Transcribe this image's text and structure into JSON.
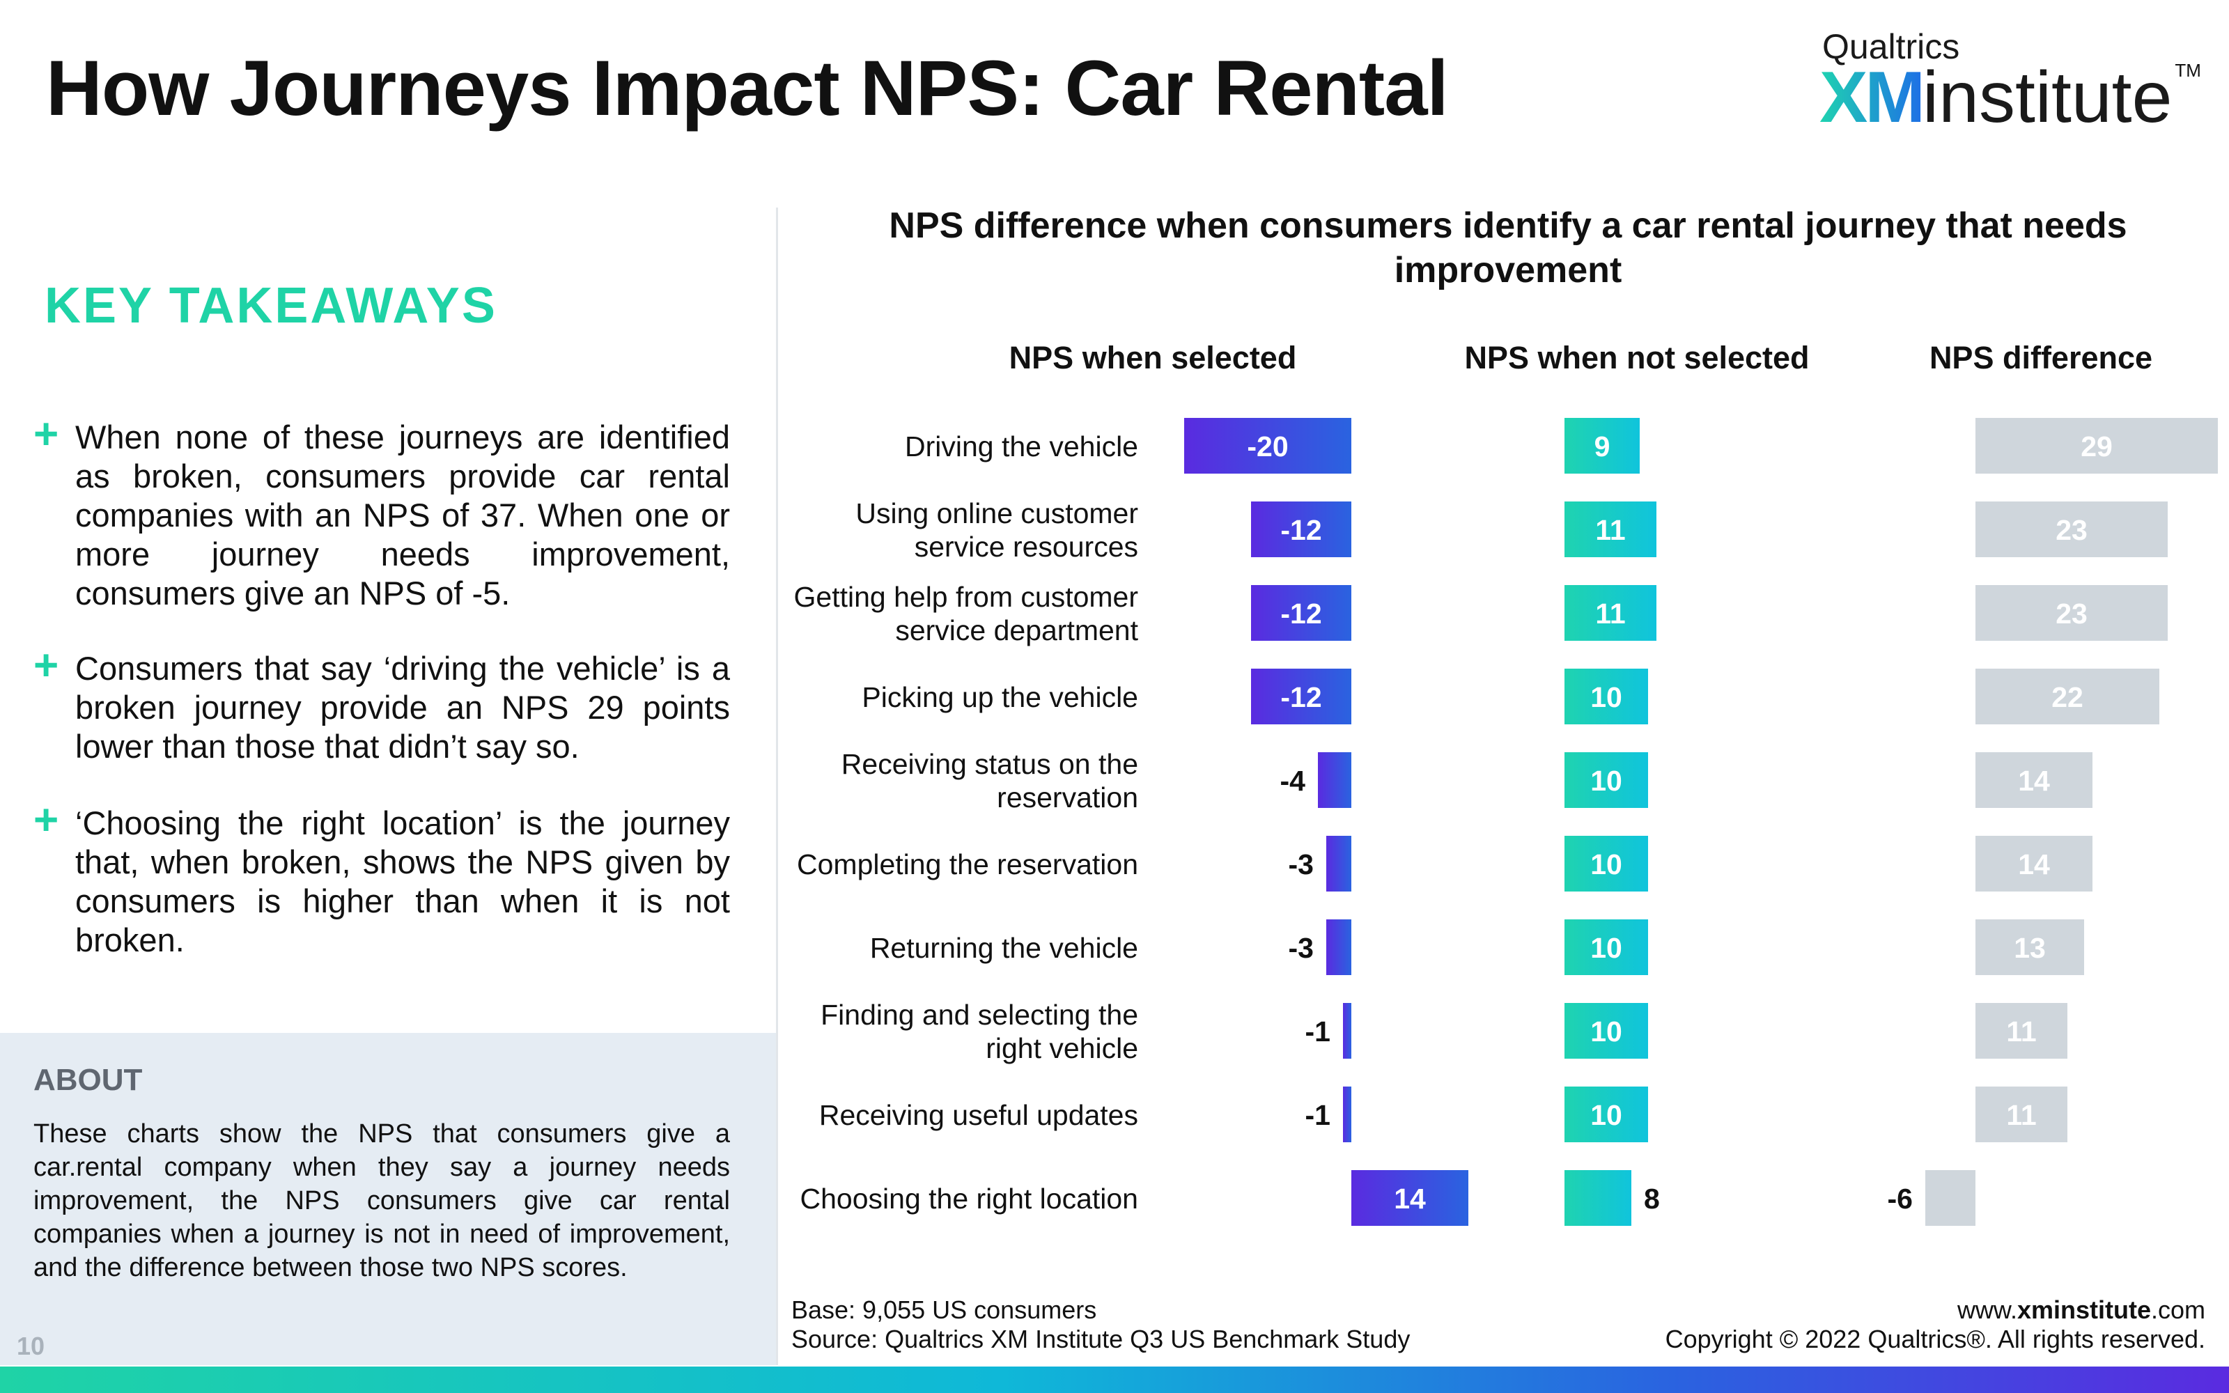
{
  "header": {
    "title": "How Journeys Impact NPS: Car Rental",
    "brand_top": "Qualtrics",
    "brand_xm": "XM",
    "brand_institute": "institute",
    "brand_tm": "TM"
  },
  "takeaways": {
    "title": "KEY TAKEAWAYS",
    "items": [
      "When none of these journeys are identified as broken, consumers provide car rental companies with an NPS of 37. When one or more journey needs improvement, consumers give an NPS of -5.",
      "Consumers that say ‘driving the vehicle’ is a broken journey provide an NPS 29 points lower than those that didn’t say so.",
      "‘Choosing the right location’ is the journey that, when broken, shows the NPS given by consumers is higher than when it is not broken."
    ]
  },
  "about": {
    "title": "ABOUT",
    "text": "These charts show the NPS that consumers give a car.rental company when they say a journey needs improvement, the NPS consumers give car rental companies when a journey is not in need of improvement, and the difference between those two NPS scores."
  },
  "page_number": "10",
  "footer": {
    "base": "Base: 9,055 US consumers",
    "source": "Source: Qualtrics XM Institute Q3 US Benchmark Study",
    "site_prefix": "www.",
    "site_bold": "xminstitute",
    "site_suffix": ".com",
    "copyright": "Copyright © 2022 Qualtrics®. All rights reserved."
  },
  "colors": {
    "accent_teal": "#1fd3a6",
    "selected_start": "#5a2be0",
    "selected_end": "#2a63e0",
    "not_selected_start": "#1fd3b0",
    "not_selected_end": "#10c4dc",
    "difference": "#cfd6dc"
  },
  "chart_data": {
    "type": "bar",
    "title": "NPS difference when consumers identify a car rental journey that needs improvement",
    "categories": [
      "Driving the vehicle",
      "Using online customer service resources",
      "Getting help from customer service department",
      "Picking up the vehicle",
      "Receiving status on the reservation",
      "Completing the reservation",
      "Returning the vehicle",
      "Finding and selecting the right vehicle",
      "Receiving useful updates",
      "Choosing the right location"
    ],
    "category_lines": [
      [
        "Driving the vehicle"
      ],
      [
        "Using online customer",
        "service resources"
      ],
      [
        "Getting help from customer",
        "service department"
      ],
      [
        "Picking up the vehicle"
      ],
      [
        "Receiving status on the",
        "reservation"
      ],
      [
        "Completing the reservation"
      ],
      [
        "Returning the vehicle"
      ],
      [
        "Finding and selecting the",
        "right vehicle"
      ],
      [
        "Receiving useful updates"
      ],
      [
        "Choosing the right location"
      ]
    ],
    "series": [
      {
        "name": "NPS when selected",
        "values": [
          -20,
          -12,
          -12,
          -12,
          -4,
          -3,
          -3,
          -1,
          -1,
          14
        ]
      },
      {
        "name": "NPS when not selected",
        "values": [
          9,
          11,
          11,
          10,
          10,
          10,
          10,
          10,
          10,
          8
        ]
      },
      {
        "name": "NPS difference",
        "values": [
          29,
          23,
          23,
          22,
          14,
          14,
          13,
          11,
          11,
          -6
        ]
      }
    ]
  }
}
